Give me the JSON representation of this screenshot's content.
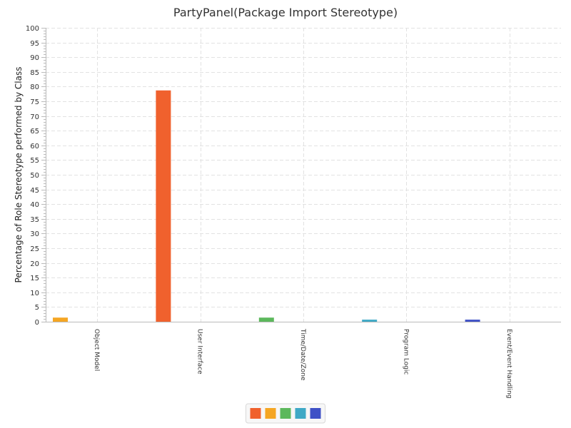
{
  "chart_data": {
    "type": "bar",
    "title": "PartyPanel(Package Import Stereotype)",
    "xlabel": "",
    "ylabel": "Percentage of Role Stereotype performed by Class",
    "ylim": [
      0,
      100
    ],
    "ytick_step": 5,
    "grid": true,
    "categories": [
      "Object Model",
      "User Interface",
      "Time/Date/Zone",
      "Program Logic",
      "Event/Event Handling"
    ],
    "series": [
      {
        "color": "#f0612d",
        "values": [
          0,
          78.7,
          0,
          0,
          0
        ]
      },
      {
        "color": "#f5a623",
        "values": [
          1.4,
          0,
          0,
          0,
          0
        ]
      },
      {
        "color": "#5cb85c",
        "values": [
          0,
          0,
          1.4,
          0,
          0
        ]
      },
      {
        "color": "#3fa9c6",
        "values": [
          0,
          0,
          0,
          0.7,
          0
        ]
      },
      {
        "color": "#3f51c6",
        "values": [
          0,
          0,
          0,
          0,
          0.7
        ]
      }
    ],
    "legend_position": "bottom-center"
  }
}
